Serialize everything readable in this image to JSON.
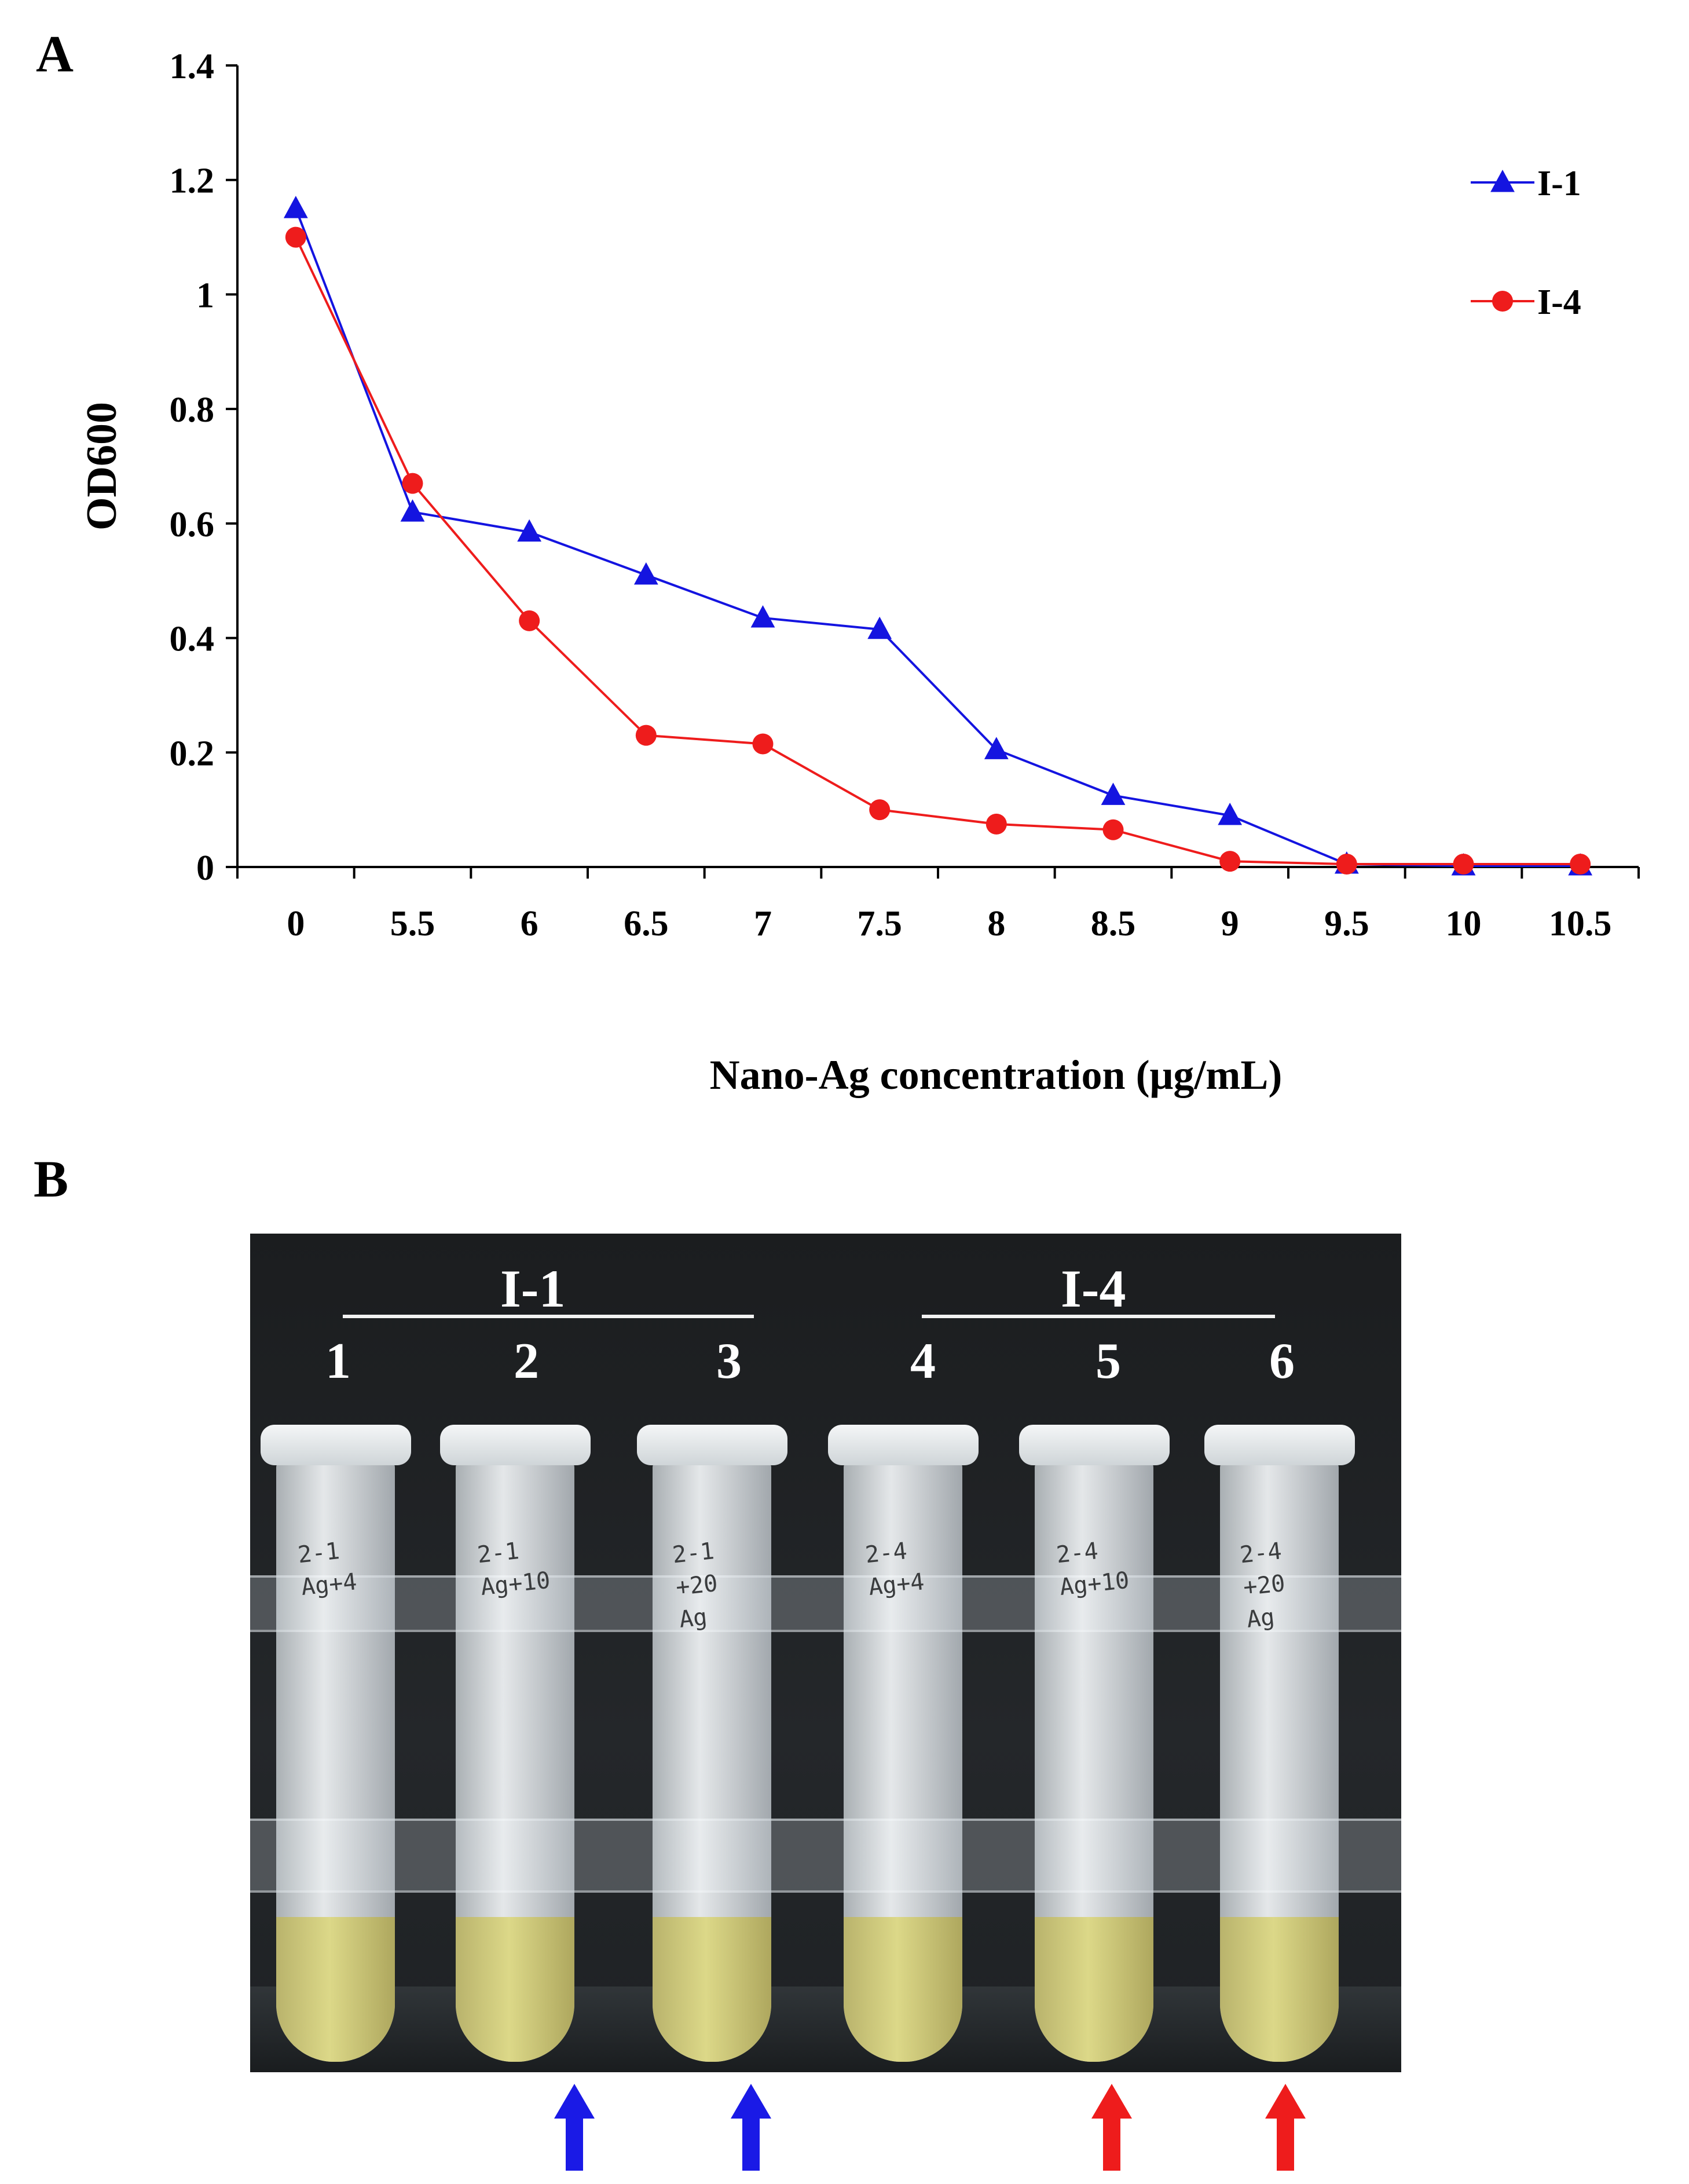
{
  "panels": {
    "a": "A",
    "b": "B"
  },
  "chart_data": {
    "type": "line",
    "categories": [
      "0",
      "5.5",
      "6",
      "6.5",
      "7",
      "7.5",
      "8",
      "8.5",
      "9",
      "9.5",
      "10",
      "10.5"
    ],
    "series": [
      {
        "name": "I-1",
        "color": "#1414e0",
        "marker": "triangle",
        "values": [
          1.15,
          0.62,
          0.585,
          0.51,
          0.435,
          0.415,
          0.205,
          0.125,
          0.09,
          0.005,
          0.002,
          0.002
        ]
      },
      {
        "name": "I-4",
        "color": "#ee1c1c",
        "marker": "circle",
        "values": [
          1.1,
          0.67,
          0.43,
          0.23,
          0.215,
          0.1,
          0.075,
          0.065,
          0.01,
          0.005,
          0.005,
          0.005
        ]
      }
    ],
    "yticks": [
      "0",
      "0.2",
      "0.4",
      "0.6",
      "0.8",
      "1",
      "1.2",
      "1.4"
    ],
    "ylim": [
      0,
      1.4
    ],
    "xlabel": "Nano-Ag concentration (μg/mL)",
    "ylabel": "OD600",
    "legend_position": "top-right"
  },
  "photo": {
    "groups": [
      {
        "label": "I-1"
      },
      {
        "label": "I-4"
      }
    ],
    "tubes": [
      {
        "number": "1",
        "writing": [
          "2-1",
          "Ag+4"
        ]
      },
      {
        "number": "2",
        "writing": [
          "2-1",
          "Ag+10"
        ]
      },
      {
        "number": "3",
        "writing": [
          "2-1",
          "+20",
          "Ag"
        ]
      },
      {
        "number": "4",
        "writing": [
          "2-4",
          "Ag+4"
        ]
      },
      {
        "number": "5",
        "writing": [
          "2-4",
          "Ag+10"
        ]
      },
      {
        "number": "6",
        "writing": [
          "2-4",
          "+20",
          "Ag"
        ]
      }
    ],
    "arrows": [
      {
        "under_tube": "2",
        "color": "#1a1ae6"
      },
      {
        "under_tube": "3",
        "color": "#1a1ae6"
      },
      {
        "under_tube": "5",
        "color": "#ee1c1c"
      },
      {
        "under_tube": "6",
        "color": "#ee1c1c"
      }
    ]
  }
}
